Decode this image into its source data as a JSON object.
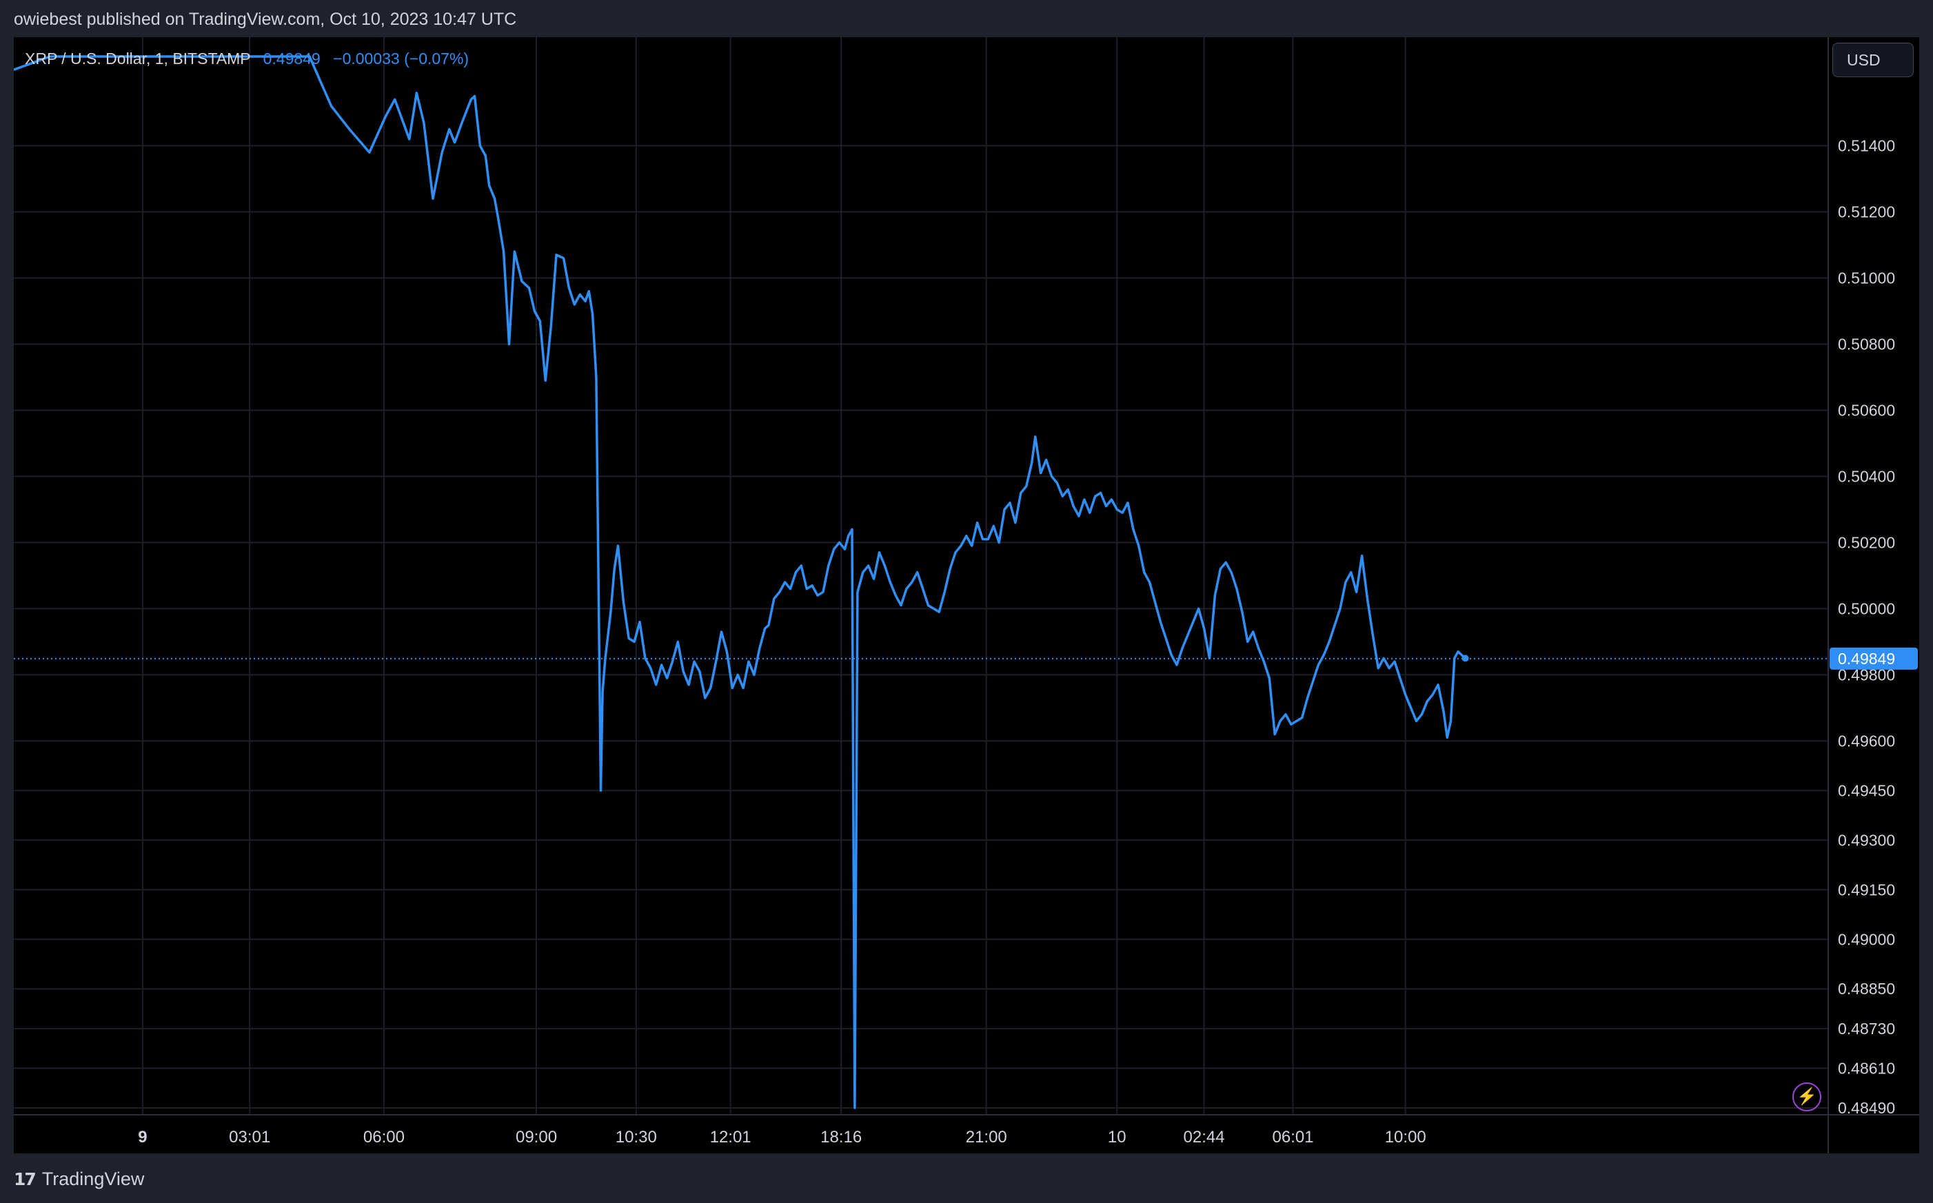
{
  "caption": "owiebest published on TradingView.com, Oct 10, 2023 10:47 UTC",
  "legend": {
    "symbol": "XRP / U.S. Dollar, 1, BITSTAMP",
    "price": "0.49849",
    "change": "−0.00033 (−0.07%)"
  },
  "currency_button": "USD",
  "brand": {
    "logo": "17",
    "name": "TradingView"
  },
  "icons": {
    "bolt": "lightning-icon",
    "logo": "tradingview-logo-icon"
  },
  "colors": {
    "line": "#2f8ff5",
    "background": "#000000",
    "frame": "#1e222d",
    "grid": "#1c1f27",
    "text": "#d1d4dc",
    "price_tag": "#2f8ff5",
    "bolt": "#9c44d4"
  },
  "chart_data": {
    "type": "line",
    "title": "XRP / U.S. Dollar, 1, BITSTAMP",
    "series": [
      {
        "name": "XRP / U.S. Dollar",
        "points": [
          [
            0.0,
            0.5163
          ],
          [
            0.02,
            0.5167
          ],
          [
            0.1,
            0.5167
          ],
          [
            0.163,
            0.5167
          ],
          [
            0.175,
            0.5152
          ],
          [
            0.185,
            0.5145
          ],
          [
            0.196,
            0.5138
          ],
          [
            0.205,
            0.5149
          ],
          [
            0.21,
            0.5154
          ],
          [
            0.218,
            0.5142
          ],
          [
            0.222,
            0.5156
          ],
          [
            0.226,
            0.5147
          ],
          [
            0.231,
            0.5124
          ],
          [
            0.236,
            0.5138
          ],
          [
            0.24,
            0.5145
          ],
          [
            0.243,
            0.5141
          ],
          [
            0.247,
            0.5147
          ],
          [
            0.252,
            0.5154
          ],
          [
            0.254,
            0.5155
          ],
          [
            0.257,
            0.514
          ],
          [
            0.26,
            0.5137
          ],
          [
            0.262,
            0.5128
          ],
          [
            0.265,
            0.5124
          ],
          [
            0.267,
            0.5118
          ],
          [
            0.27,
            0.5108
          ],
          [
            0.273,
            0.508
          ],
          [
            0.276,
            0.5108
          ],
          [
            0.28,
            0.5099
          ],
          [
            0.284,
            0.5097
          ],
          [
            0.287,
            0.509
          ],
          [
            0.29,
            0.5087
          ],
          [
            0.293,
            0.5069
          ],
          [
            0.296,
            0.5085
          ],
          [
            0.299,
            0.5107
          ],
          [
            0.303,
            0.5106
          ],
          [
            0.306,
            0.5097
          ],
          [
            0.309,
            0.5092
          ],
          [
            0.312,
            0.5095
          ],
          [
            0.315,
            0.5093
          ],
          [
            0.317,
            0.5096
          ],
          [
            0.319,
            0.5089
          ],
          [
            0.321,
            0.507
          ],
          [
            0.3235,
            0.4945
          ],
          [
            0.3245,
            0.4975
          ],
          [
            0.326,
            0.4985
          ],
          [
            0.329,
            0.4999
          ],
          [
            0.331,
            0.5012
          ],
          [
            0.333,
            0.5019
          ],
          [
            0.336,
            0.5002
          ],
          [
            0.339,
            0.4991
          ],
          [
            0.342,
            0.499
          ],
          [
            0.345,
            0.4996
          ],
          [
            0.348,
            0.4985
          ],
          [
            0.351,
            0.4982
          ],
          [
            0.354,
            0.4977
          ],
          [
            0.357,
            0.4983
          ],
          [
            0.36,
            0.4979
          ],
          [
            0.363,
            0.4984
          ],
          [
            0.366,
            0.499
          ],
          [
            0.369,
            0.4981
          ],
          [
            0.372,
            0.4977
          ],
          [
            0.375,
            0.4984
          ],
          [
            0.378,
            0.4981
          ],
          [
            0.381,
            0.4973
          ],
          [
            0.384,
            0.4976
          ],
          [
            0.387,
            0.4984
          ],
          [
            0.39,
            0.4993
          ],
          [
            0.393,
            0.4987
          ],
          [
            0.396,
            0.4976
          ],
          [
            0.399,
            0.498
          ],
          [
            0.402,
            0.4976
          ],
          [
            0.405,
            0.4984
          ],
          [
            0.408,
            0.498
          ],
          [
            0.411,
            0.4988
          ],
          [
            0.414,
            0.4994
          ],
          [
            0.416,
            0.4995
          ],
          [
            0.419,
            0.5003
          ],
          [
            0.422,
            0.5005
          ],
          [
            0.425,
            0.5008
          ],
          [
            0.428,
            0.5006
          ],
          [
            0.431,
            0.5011
          ],
          [
            0.434,
            0.5013
          ],
          [
            0.437,
            0.5006
          ],
          [
            0.44,
            0.5007
          ],
          [
            0.443,
            0.5004
          ],
          [
            0.446,
            0.5005
          ],
          [
            0.449,
            0.5013
          ],
          [
            0.452,
            0.5018
          ],
          [
            0.455,
            0.502
          ],
          [
            0.458,
            0.5018
          ],
          [
            0.46,
            0.5022
          ],
          [
            0.462,
            0.5024
          ],
          [
            0.4635,
            0.4849
          ],
          [
            0.465,
            0.5005
          ],
          [
            0.468,
            0.5011
          ],
          [
            0.471,
            0.5013
          ],
          [
            0.474,
            0.5009
          ],
          [
            0.477,
            0.5017
          ],
          [
            0.48,
            0.5013
          ],
          [
            0.483,
            0.5008
          ],
          [
            0.486,
            0.5004
          ],
          [
            0.489,
            0.5001
          ],
          [
            0.492,
            0.5006
          ],
          [
            0.495,
            0.5008
          ],
          [
            0.498,
            0.5011
          ],
          [
            0.501,
            0.5006
          ],
          [
            0.504,
            0.5001
          ],
          [
            0.507,
            0.5
          ],
          [
            0.51,
            0.4999
          ],
          [
            0.513,
            0.5005
          ],
          [
            0.516,
            0.5012
          ],
          [
            0.519,
            0.5017
          ],
          [
            0.522,
            0.5019
          ],
          [
            0.525,
            0.5022
          ],
          [
            0.528,
            0.5019
          ],
          [
            0.531,
            0.5026
          ],
          [
            0.534,
            0.5021
          ],
          [
            0.537,
            0.5021
          ],
          [
            0.54,
            0.5025
          ],
          [
            0.543,
            0.502
          ],
          [
            0.546,
            0.503
          ],
          [
            0.549,
            0.5032
          ],
          [
            0.552,
            0.5026
          ],
          [
            0.555,
            0.5035
          ],
          [
            0.558,
            0.5037
          ],
          [
            0.561,
            0.5044
          ],
          [
            0.563,
            0.5052
          ],
          [
            0.566,
            0.5041
          ],
          [
            0.569,
            0.5045
          ],
          [
            0.572,
            0.504
          ],
          [
            0.575,
            0.5038
          ],
          [
            0.578,
            0.5034
          ],
          [
            0.581,
            0.5036
          ],
          [
            0.584,
            0.5031
          ],
          [
            0.587,
            0.5028
          ],
          [
            0.59,
            0.5033
          ],
          [
            0.593,
            0.5029
          ],
          [
            0.596,
            0.5034
          ],
          [
            0.599,
            0.5035
          ],
          [
            0.602,
            0.5031
          ],
          [
            0.605,
            0.5033
          ],
          [
            0.608,
            0.503
          ],
          [
            0.611,
            0.5029
          ],
          [
            0.614,
            0.5032
          ],
          [
            0.617,
            0.5024
          ],
          [
            0.62,
            0.5019
          ],
          [
            0.623,
            0.5011
          ],
          [
            0.626,
            0.5008
          ],
          [
            0.629,
            0.5002
          ],
          [
            0.632,
            0.4996
          ],
          [
            0.635,
            0.4991
          ],
          [
            0.638,
            0.4986
          ],
          [
            0.641,
            0.4983
          ],
          [
            0.644,
            0.4988
          ],
          [
            0.647,
            0.4992
          ],
          [
            0.65,
            0.4996
          ],
          [
            0.653,
            0.5
          ],
          [
            0.656,
            0.4994
          ],
          [
            0.659,
            0.4985
          ],
          [
            0.662,
            0.5004
          ],
          [
            0.665,
            0.5012
          ],
          [
            0.668,
            0.5014
          ],
          [
            0.671,
            0.5011
          ],
          [
            0.674,
            0.5006
          ],
          [
            0.677,
            0.4999
          ],
          [
            0.68,
            0.499
          ],
          [
            0.683,
            0.4993
          ],
          [
            0.686,
            0.4988
          ],
          [
            0.689,
            0.4984
          ],
          [
            0.692,
            0.4979
          ],
          [
            0.695,
            0.4962
          ],
          [
            0.698,
            0.4966
          ],
          [
            0.701,
            0.4968
          ],
          [
            0.704,
            0.4965
          ],
          [
            0.707,
            0.4966
          ],
          [
            0.71,
            0.4967
          ],
          [
            0.713,
            0.4973
          ],
          [
            0.716,
            0.4978
          ],
          [
            0.719,
            0.4983
          ],
          [
            0.722,
            0.4986
          ],
          [
            0.725,
            0.499
          ],
          [
            0.728,
            0.4995
          ],
          [
            0.731,
            0.5
          ],
          [
            0.734,
            0.5008
          ],
          [
            0.737,
            0.5011
          ],
          [
            0.74,
            0.5005
          ],
          [
            0.743,
            0.5016
          ],
          [
            0.746,
            0.5003
          ],
          [
            0.749,
            0.4992
          ],
          [
            0.752,
            0.4982
          ],
          [
            0.755,
            0.4985
          ],
          [
            0.758,
            0.4982
          ],
          [
            0.761,
            0.4984
          ],
          [
            0.764,
            0.4979
          ],
          [
            0.767,
            0.4974
          ],
          [
            0.77,
            0.497
          ],
          [
            0.773,
            0.4966
          ],
          [
            0.776,
            0.4968
          ],
          [
            0.779,
            0.4972
          ],
          [
            0.782,
            0.4974
          ],
          [
            0.785,
            0.4977
          ],
          [
            0.788,
            0.4969
          ],
          [
            0.79,
            0.4961
          ],
          [
            0.792,
            0.4966
          ],
          [
            0.794,
            0.4985
          ],
          [
            0.796,
            0.4987
          ],
          [
            0.798,
            0.4986
          ],
          [
            0.8,
            0.4985
          ]
        ]
      }
    ],
    "xlabel": "",
    "ylabel": "",
    "xlim": [
      0,
      1
    ],
    "ylim": [
      0.4849,
      0.5172
    ],
    "x_ticks": [
      {
        "label": "9",
        "x": 0.071,
        "bold": true
      },
      {
        "label": "03:01",
        "x": 0.13
      },
      {
        "label": "06:00",
        "x": 0.204
      },
      {
        "label": "09:00",
        "x": 0.288
      },
      {
        "label": "10:30",
        "x": 0.343
      },
      {
        "label": "12:01",
        "x": 0.395
      },
      {
        "label": "18:16",
        "x": 0.456
      },
      {
        "label": "21:00",
        "x": 0.536
      },
      {
        "label": "10",
        "x": 0.608
      },
      {
        "label": "02:44",
        "x": 0.656
      },
      {
        "label": "06:01",
        "x": 0.705
      },
      {
        "label": "10:00",
        "x": 0.767
      }
    ],
    "y_ticks": [
      "0.51400",
      "0.51200",
      "0.51000",
      "0.50800",
      "0.50600",
      "0.50400",
      "0.50200",
      "0.50000",
      "0.49800",
      "0.49600",
      "0.49450",
      "0.49300",
      "0.49150",
      "0.49000",
      "0.48850",
      "0.48730",
      "0.48610",
      "0.48490"
    ],
    "y_tick_values": [
      0.514,
      0.512,
      0.51,
      0.508,
      0.506,
      0.504,
      0.502,
      0.5,
      0.498,
      0.496,
      0.4945,
      0.493,
      0.4915,
      0.49,
      0.4885,
      0.4873,
      0.4861,
      0.4849
    ],
    "last_price": 0.49849,
    "last_price_label": "0.49849",
    "grid": true,
    "price_line": "dotted"
  }
}
